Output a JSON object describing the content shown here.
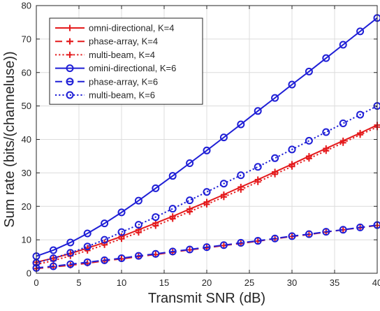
{
  "chart_data": {
    "type": "line",
    "title": "",
    "xlabel": "Transmit SNR (dB)",
    "ylabel": "Sum rate (bits/(channeluse))",
    "xlim": [
      0,
      40
    ],
    "ylim": [
      0,
      80
    ],
    "xticks": [
      0,
      5,
      10,
      15,
      20,
      25,
      30,
      35,
      40
    ],
    "yticks": [
      0,
      10,
      20,
      30,
      40,
      50,
      60,
      70,
      80
    ],
    "grid": true,
    "legend_position": "top-left",
    "x": [
      0,
      2,
      4,
      6,
      8,
      10,
      12,
      14,
      16,
      18,
      20,
      22,
      24,
      26,
      28,
      30,
      32,
      34,
      36,
      38,
      40
    ],
    "series": [
      {
        "name": "omni-directional, K=4",
        "color": "#e41a1c",
        "line": "solid",
        "marker": "plus",
        "values": [
          3.3,
          4.5,
          5.9,
          7.5,
          9.2,
          11.0,
          13.0,
          15.0,
          17.0,
          19.2,
          21.3,
          23.5,
          25.8,
          28.0,
          30.3,
          32.6,
          35.0,
          37.3,
          39.6,
          41.9,
          44.3
        ]
      },
      {
        "name": "phase-array, K=4",
        "color": "#e41a1c",
        "line": "dashed",
        "marker": "plus",
        "values": [
          1.4,
          1.9,
          2.4,
          3.0,
          3.7,
          4.3,
          5.0,
          5.6,
          6.3,
          7.0,
          7.6,
          8.3,
          8.9,
          9.6,
          10.3,
          11.0,
          11.6,
          12.3,
          13.0,
          13.6,
          14.3
        ]
      },
      {
        "name": "multi-beam, K=4",
        "color": "#e41a1c",
        "line": "dotted",
        "marker": "plus",
        "values": [
          2.6,
          3.8,
          5.2,
          6.8,
          8.5,
          10.3,
          12.2,
          14.2,
          16.3,
          18.4,
          20.6,
          22.8,
          25.0,
          27.3,
          29.6,
          31.9,
          34.3,
          36.6,
          39.0,
          41.4,
          43.7
        ]
      },
      {
        "name": "omini-directional, K=6",
        "color": "#1f1fd6",
        "line": "solid",
        "marker": "circle",
        "values": [
          5.1,
          6.9,
          9.2,
          11.9,
          14.9,
          18.2,
          21.7,
          25.4,
          29.1,
          32.9,
          36.7,
          40.6,
          44.5,
          48.5,
          52.4,
          56.4,
          60.3,
          64.3,
          68.3,
          72.3,
          76.3
        ]
      },
      {
        "name": "phase-array, K=6",
        "color": "#1f1fd6",
        "line": "dashed",
        "marker": "circle",
        "values": [
          1.6,
          2.1,
          2.7,
          3.3,
          3.9,
          4.5,
          5.2,
          5.8,
          6.5,
          7.1,
          7.8,
          8.4,
          9.1,
          9.7,
          10.4,
          11.1,
          11.7,
          12.4,
          13.0,
          13.7,
          14.4
        ]
      },
      {
        "name": "multi-beam, K=6",
        "color": "#1f1fd6",
        "line": "dotted",
        "marker": "circle",
        "values": [
          3.1,
          4.5,
          6.1,
          8.0,
          10.0,
          12.3,
          14.5,
          16.8,
          19.3,
          21.8,
          24.3,
          26.8,
          29.3,
          31.8,
          34.4,
          37.0,
          39.6,
          42.2,
          44.8,
          47.4,
          50.0
        ]
      }
    ]
  }
}
